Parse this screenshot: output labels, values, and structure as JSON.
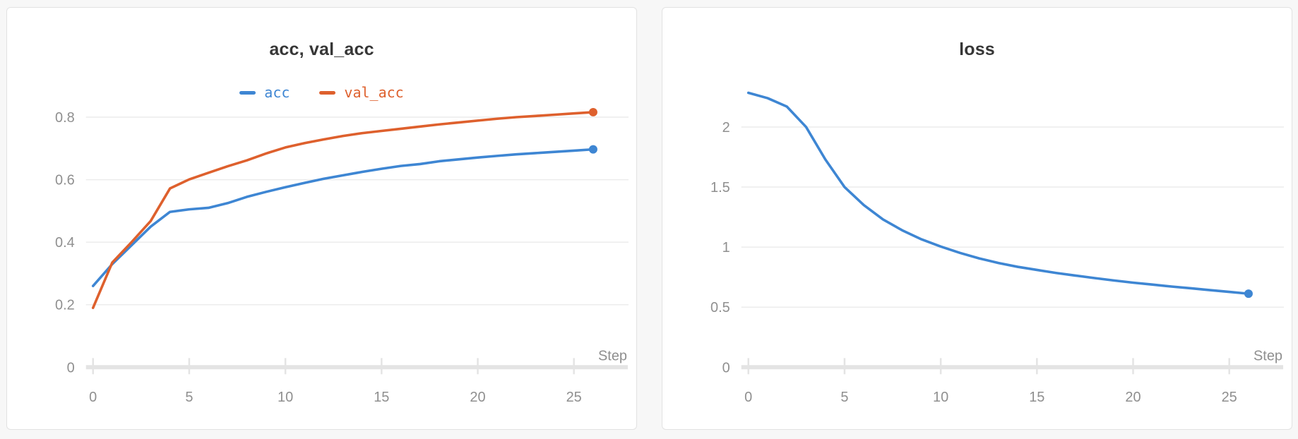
{
  "page": {
    "background_color": "#f7f7f7",
    "panel_border_color": "#e2e2e2",
    "gridline_color": "#ececec",
    "axis_color": "#e4e4e4",
    "tick_label_color": "#8f8f8f",
    "title_color": "#373737"
  },
  "chart_data": [
    {
      "type": "line",
      "title": "acc, val_acc",
      "xlabel": "Step",
      "legend": true,
      "legend_position": "top-center",
      "grid": true,
      "xlim": [
        0,
        26
      ],
      "ylim": [
        0,
        0.88
      ],
      "x_ticks": [
        {
          "value": 0,
          "label": "0"
        },
        {
          "value": 5,
          "label": "5"
        },
        {
          "value": 10,
          "label": "10"
        },
        {
          "value": 15,
          "label": "15"
        },
        {
          "value": 20,
          "label": "20"
        },
        {
          "value": 25,
          "label": "25"
        }
      ],
      "y_ticks": [
        {
          "value": 0.8,
          "label": "0.8"
        },
        {
          "value": 0.6,
          "label": "0.6"
        },
        {
          "value": 0.4,
          "label": "0.4"
        },
        {
          "value": 0.2,
          "label": "0.2"
        },
        {
          "value": 0,
          "label": "0"
        }
      ],
      "x_start": 0,
      "x_step": 1,
      "series": [
        {
          "name": "acc",
          "color": "#3e86d3",
          "end_marker": true,
          "values": [
            0.26,
            0.33,
            0.39,
            0.45,
            0.497,
            0.505,
            0.51,
            0.525,
            0.545,
            0.561,
            0.576,
            0.59,
            0.603,
            0.614,
            0.625,
            0.635,
            0.644,
            0.65,
            0.659,
            0.665,
            0.671,
            0.676,
            0.681,
            0.685,
            0.689,
            0.693,
            0.697
          ]
        },
        {
          "name": "val_acc",
          "color": "#de602d",
          "end_marker": true,
          "values": [
            0.19,
            0.335,
            0.4,
            0.468,
            0.572,
            0.601,
            0.622,
            0.643,
            0.662,
            0.684,
            0.703,
            0.717,
            0.729,
            0.74,
            0.749,
            0.756,
            0.763,
            0.77,
            0.777,
            0.783,
            0.789,
            0.795,
            0.8,
            0.804,
            0.808,
            0.812,
            0.816
          ]
        }
      ]
    },
    {
      "type": "line",
      "title": "loss",
      "xlabel": "Step",
      "legend": false,
      "grid": true,
      "xlim": [
        0,
        26
      ],
      "ylim": [
        0,
        2.29
      ],
      "x_ticks": [
        {
          "value": 0,
          "label": "0"
        },
        {
          "value": 5,
          "label": "5"
        },
        {
          "value": 10,
          "label": "10"
        },
        {
          "value": 15,
          "label": "15"
        },
        {
          "value": 20,
          "label": "20"
        },
        {
          "value": 25,
          "label": "25"
        }
      ],
      "y_ticks": [
        {
          "value": 2,
          "label": "2"
        },
        {
          "value": 1.5,
          "label": "1.5"
        },
        {
          "value": 1,
          "label": "1"
        },
        {
          "value": 0.5,
          "label": "0.5"
        },
        {
          "value": 0,
          "label": "0"
        }
      ],
      "x_start": 0,
      "x_step": 1,
      "series": [
        {
          "name": "loss",
          "color": "#3e86d3",
          "end_marker": true,
          "values": [
            2.285,
            2.24,
            2.17,
            2.0,
            1.73,
            1.5,
            1.35,
            1.23,
            1.14,
            1.065,
            1.005,
            0.952,
            0.906,
            0.868,
            0.836,
            0.81,
            0.785,
            0.763,
            0.742,
            0.722,
            0.704,
            0.688,
            0.672,
            0.657,
            0.642,
            0.627,
            0.612
          ]
        }
      ]
    }
  ]
}
